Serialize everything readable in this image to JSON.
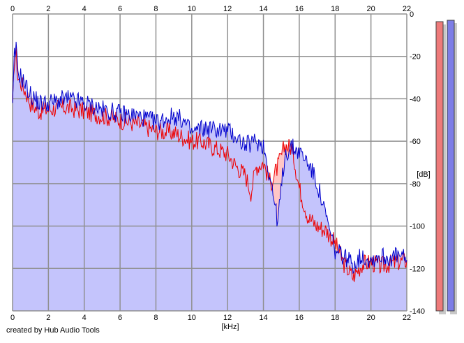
{
  "credit": "created by Hub Audio Tools",
  "chart_data": {
    "type": "area",
    "xlabel": "[kHz]",
    "ylabel": "[dB]",
    "xlim": [
      0,
      22
    ],
    "ylim": [
      -140,
      0
    ],
    "x_ticks": [
      0,
      2,
      4,
      6,
      8,
      10,
      12,
      14,
      16,
      18,
      20,
      22
    ],
    "y_ticks": [
      0,
      -20,
      -40,
      -60,
      -80,
      -100,
      -120,
      -140
    ],
    "x_tick_labels": [
      "0",
      "2",
      "4",
      "6",
      "8",
      "10",
      "12",
      "14",
      "16",
      "18",
      "20",
      "22"
    ],
    "y_tick_labels": [
      "0",
      "-20",
      "-40",
      "-60",
      "-80",
      "-100",
      "-120",
      "-140"
    ],
    "grid": true,
    "colors": {
      "red": "#ee0000",
      "blue": "#0000cc",
      "red_fill": "#ffc6c6",
      "blue_fill": "#c4c4fc",
      "grid": "#909090",
      "meter_red": "#ee7a7a",
      "meter_blue": "#7d7de6"
    },
    "series": [
      {
        "color": "red",
        "x": [
          0,
          0.1,
          0.2,
          0.3,
          0.5,
          0.8,
          1.0,
          1.5,
          2.0,
          3.0,
          4.0,
          5.0,
          6.0,
          7.0,
          8.0,
          9.0,
          9.5,
          10.0,
          10.5,
          11.0,
          12.0,
          12.5,
          13.0,
          13.3,
          13.6,
          14.0,
          14.4,
          14.8,
          15.2,
          15.6,
          16.0,
          16.5,
          17.0,
          17.5,
          18.0,
          18.5,
          19.0,
          19.5,
          20.0,
          20.5,
          21.0,
          21.5,
          22.0
        ],
        "y": [
          -45,
          -22,
          -18,
          -30,
          -33,
          -38,
          -42,
          -46,
          -45,
          -44,
          -46,
          -48,
          -50,
          -52,
          -55,
          -56,
          -58,
          -60,
          -60,
          -62,
          -66,
          -72,
          -76,
          -84,
          -72,
          -70,
          -80,
          -72,
          -62,
          -63,
          -82,
          -96,
          -100,
          -102,
          -108,
          -118,
          -124,
          -118,
          -117,
          -119,
          -118,
          -117,
          -116
        ]
      },
      {
        "color": "blue",
        "x": [
          0,
          0.1,
          0.2,
          0.3,
          0.5,
          0.8,
          1.0,
          1.5,
          2.0,
          3.0,
          4.0,
          5.0,
          6.0,
          7.0,
          8.0,
          9.0,
          9.5,
          10.0,
          10.5,
          11.0,
          12.0,
          12.5,
          13.0,
          13.3,
          13.6,
          14.0,
          14.4,
          14.8,
          15.2,
          15.6,
          16.0,
          16.5,
          17.0,
          17.5,
          18.0,
          18.5,
          19.0,
          19.5,
          20.0,
          20.5,
          21.0,
          21.5,
          22.0
        ],
        "y": [
          -45,
          -20,
          -17,
          -27,
          -30,
          -35,
          -38,
          -42,
          -42,
          -40,
          -42,
          -45,
          -47,
          -48,
          -51,
          -48,
          -50,
          -56,
          -54,
          -54,
          -55,
          -58,
          -62,
          -61,
          -60,
          -62,
          -78,
          -98,
          -66,
          -63,
          -65,
          -70,
          -80,
          -96,
          -112,
          -114,
          -118,
          -114,
          -116,
          -114,
          -115,
          -114,
          -116
        ]
      }
    ]
  }
}
